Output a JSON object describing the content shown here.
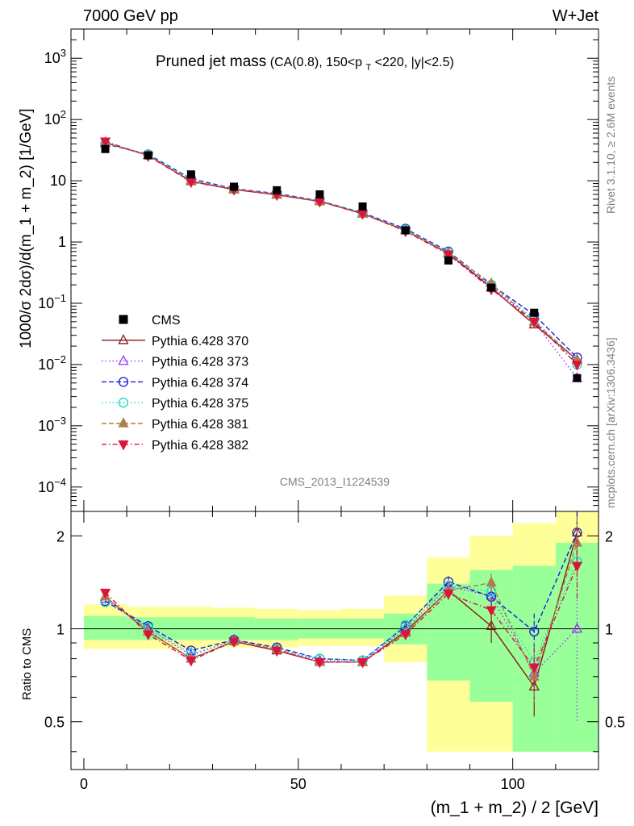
{
  "header": {
    "left": "7000 GeV pp",
    "right": "W+Jet"
  },
  "side": {
    "rivet": "Rivet 3.1.10, ≥ 2.6M events",
    "mcplots": "mcplots.cern.ch [arXiv:1306.3436]"
  },
  "watermark": "CMS_2013_I1224539",
  "chart_data": {
    "type": "scatter",
    "title_main": "Pruned jet mass",
    "title_sub_a": "(CA(0.8), 150<p",
    "title_sub_t": "T",
    "title_sub_b": "<220, |y|<2.5)",
    "xlabel": "(m_1 + m_2) / 2 [GeV]",
    "ylabel_main": "1000/σ 2dσ)/d(m_1 + m_2) [1/GeV]",
    "ylabel_ratio": "Ratio to CMS",
    "xlim": [
      -3,
      120
    ],
    "ylim_main": [
      4e-05,
      3000
    ],
    "ylog_main": true,
    "ylim_ratio": [
      0.35,
      2.4
    ],
    "ylog_ratio": true,
    "x_ticks": [
      "0",
      "50",
      "100"
    ],
    "y_ticks_main": [
      {
        "v": 1000,
        "b": "10",
        "e": "3"
      },
      {
        "v": 100,
        "b": "10",
        "e": "2"
      },
      {
        "v": 10,
        "b": "10",
        "e": ""
      },
      {
        "v": 1,
        "b": "1",
        "e": ""
      },
      {
        "v": 0.1,
        "b": "10",
        "e": "−1"
      },
      {
        "v": 0.01,
        "b": "10",
        "e": "−2"
      },
      {
        "v": 0.001,
        "b": "10",
        "e": "−3"
      },
      {
        "v": 0.0001,
        "b": "10",
        "e": "−4"
      }
    ],
    "y_ticks_ratio": [
      {
        "v": 0.5,
        "label": "0.5"
      },
      {
        "v": 1,
        "label": "1"
      },
      {
        "v": 2,
        "label": "2"
      }
    ],
    "x": [
      5,
      15,
      25,
      35,
      45,
      55,
      65,
      75,
      85,
      95,
      105,
      115
    ],
    "bin_edges": [
      0,
      10,
      20,
      30,
      40,
      50,
      60,
      70,
      80,
      90,
      100,
      110,
      120
    ],
    "data": {
      "name": "CMS",
      "values": [
        33,
        26,
        12.7,
        8.0,
        7.0,
        6.0,
        3.8,
        1.55,
        0.5,
        0.18,
        0.07,
        0.006
      ]
    },
    "band_yellow": [
      [
        0.86,
        1.2
      ],
      [
        0.86,
        1.18
      ],
      [
        0.86,
        1.18
      ],
      [
        0.87,
        1.17
      ],
      [
        0.87,
        1.16
      ],
      [
        0.88,
        1.15
      ],
      [
        0.88,
        1.16
      ],
      [
        0.78,
        1.28
      ],
      [
        0.4,
        1.7
      ],
      [
        0.4,
        2.0
      ],
      [
        0.4,
        2.2
      ],
      [
        0.4,
        2.4
      ]
    ],
    "band_green": [
      [
        0.92,
        1.1
      ],
      [
        0.92,
        1.09
      ],
      [
        0.92,
        1.09
      ],
      [
        0.92,
        1.09
      ],
      [
        0.92,
        1.08
      ],
      [
        0.93,
        1.08
      ],
      [
        0.93,
        1.08
      ],
      [
        0.89,
        1.12
      ],
      [
        0.68,
        1.4
      ],
      [
        0.58,
        1.55
      ],
      [
        0.4,
        1.6
      ],
      [
        0.4,
        1.9
      ]
    ],
    "series": [
      {
        "name": "Pythia 6.428 370",
        "color": "#8b1a1a",
        "dash": "",
        "marker": "triangle-up-open",
        "values": [
          42,
          26,
          9.8,
          7.2,
          5.9,
          4.6,
          2.9,
          1.55,
          0.65,
          0.18,
          0.045,
          0.012
        ],
        "ratio": [
          1.27,
          0.98,
          0.8,
          0.91,
          0.85,
          0.78,
          0.78,
          0.98,
          1.33,
          1.02,
          0.65,
          2.05
        ],
        "ratio_err": [
          0.02,
          0.02,
          0.02,
          0.02,
          0.02,
          0.02,
          0.02,
          0.03,
          0.06,
          0.12,
          0.13,
          0.4
        ]
      },
      {
        "name": "Pythia 6.428 373",
        "color": "#9b30ff",
        "dash": "1.5,3",
        "marker": "triangle-up-open",
        "values": [
          41,
          26.5,
          10.2,
          7.4,
          6.0,
          4.7,
          2.95,
          1.6,
          0.67,
          0.19,
          0.05,
          0.006
        ],
        "ratio": [
          1.25,
          1.0,
          0.82,
          0.92,
          0.86,
          0.79,
          0.78,
          1.0,
          1.37,
          1.28,
          0.72,
          1.0
        ],
        "ratio_err": [
          0.02,
          0.02,
          0.02,
          0.02,
          0.02,
          0.02,
          0.02,
          0.03,
          0.06,
          0.1,
          0.12,
          0.5
        ]
      },
      {
        "name": "Pythia 6.428 374",
        "color": "#1c1cd6",
        "dash": "6,3",
        "marker": "circle-open",
        "values": [
          40,
          27,
          10.8,
          7.4,
          6.2,
          4.7,
          3.0,
          1.65,
          0.7,
          0.2,
          0.065,
          0.013
        ],
        "ratio": [
          1.23,
          1.02,
          0.85,
          0.92,
          0.87,
          0.8,
          0.79,
          1.02,
          1.42,
          1.27,
          0.98,
          2.05
        ],
        "ratio_err": [
          0.02,
          0.02,
          0.02,
          0.02,
          0.02,
          0.02,
          0.02,
          0.03,
          0.06,
          0.1,
          0.14,
          0.4
        ]
      },
      {
        "name": "Pythia 6.428 375",
        "color": "#14d9c0",
        "dash": "1.5,3",
        "marker": "circle-open",
        "values": [
          40,
          27,
          10.5,
          7.3,
          6.1,
          4.7,
          3.0,
          1.6,
          0.68,
          0.2,
          0.055,
          0.01
        ],
        "ratio": [
          1.22,
          1.01,
          0.83,
          0.91,
          0.86,
          0.8,
          0.79,
          1.03,
          1.38,
          1.32,
          0.78,
          1.65
        ],
        "ratio_err": [
          0.02,
          0.02,
          0.02,
          0.02,
          0.02,
          0.02,
          0.02,
          0.03,
          0.06,
          0.1,
          0.12,
          0.35
        ]
      },
      {
        "name": "Pythia 6.428 381",
        "color": "#b07d4f",
        "dash": "6,3",
        "marker": "triangle-up-filled",
        "values": [
          42,
          26,
          10,
          7.3,
          6.0,
          4.6,
          2.9,
          1.55,
          0.66,
          0.21,
          0.05,
          0.012
        ],
        "ratio": [
          1.27,
          0.98,
          0.8,
          0.91,
          0.86,
          0.78,
          0.78,
          0.97,
          1.33,
          1.41,
          0.7,
          1.9
        ],
        "ratio_err": [
          0.02,
          0.02,
          0.02,
          0.02,
          0.02,
          0.02,
          0.02,
          0.03,
          0.06,
          0.1,
          0.12,
          0.4
        ]
      },
      {
        "name": "Pythia 6.428 382",
        "color": "#dc143c",
        "dash": "6,3,1.5,3",
        "marker": "triangle-down-filled",
        "values": [
          44,
          25.5,
          9.6,
          7.2,
          5.9,
          4.6,
          2.9,
          1.5,
          0.63,
          0.17,
          0.05,
          0.01
        ],
        "ratio": [
          1.31,
          0.96,
          0.79,
          0.91,
          0.85,
          0.78,
          0.78,
          0.96,
          1.3,
          1.15,
          0.75,
          1.6
        ],
        "ratio_err": [
          0.02,
          0.02,
          0.02,
          0.02,
          0.02,
          0.02,
          0.02,
          0.03,
          0.06,
          0.1,
          0.12,
          0.35
        ]
      }
    ]
  }
}
